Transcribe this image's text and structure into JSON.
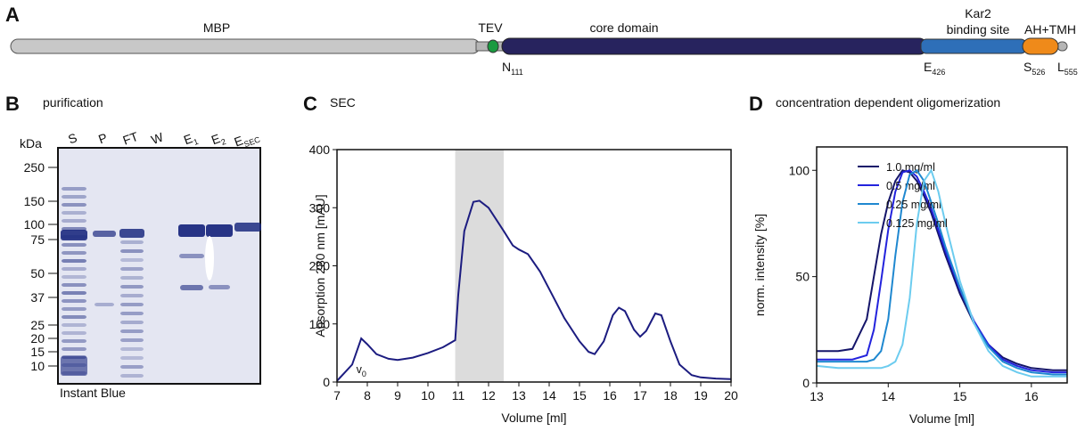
{
  "panel_a": {
    "label": "A",
    "mbp": "MBP",
    "tev": "TEV",
    "core": "core domain",
    "kar2": "Kar2",
    "binding": "binding site",
    "ah": "AH+TMH",
    "residues": [
      {
        "letter": "N",
        "sub": "111"
      },
      {
        "letter": "E",
        "sub": "426"
      },
      {
        "letter": "S",
        "sub": "526"
      },
      {
        "letter": "L",
        "sub": "555"
      }
    ]
  },
  "panel_b": {
    "label": "B",
    "title": "purification",
    "unit": "kDa",
    "lanes": [
      {
        "letter": "S",
        "sub": ""
      },
      {
        "letter": "P",
        "sub": ""
      },
      {
        "letter": "FT",
        "sub": ""
      },
      {
        "letter": "W",
        "sub": ""
      },
      {
        "letter": "E",
        "sub": "1"
      },
      {
        "letter": "E",
        "sub": "2"
      },
      {
        "letter": "E",
        "sub": "SEC"
      }
    ],
    "markers": [
      250,
      150,
      100,
      75,
      50,
      37,
      25,
      20,
      15,
      10
    ],
    "stain": "Instant Blue"
  },
  "chart_data": [
    {
      "type": "line",
      "panel_label": "C",
      "title": "SEC",
      "x_label": "Volume [ml]",
      "y_label": "Absorption 280 nm [mAU]",
      "xlim": [
        7,
        20
      ],
      "ylim": [
        0,
        400
      ],
      "xticks": [
        7,
        8,
        9,
        10,
        11,
        12,
        13,
        14,
        15,
        16,
        17,
        18,
        19,
        20
      ],
      "yticks": [
        0,
        100,
        200,
        300,
        400
      ],
      "highlight": [
        10.9,
        12.5
      ],
      "highlight_color": "#dcdcdc",
      "annotation": {
        "letter": "v",
        "sub": "0",
        "x": 7.8
      },
      "x": [
        7.0,
        7.5,
        7.8,
        8.0,
        8.3,
        8.7,
        9.0,
        9.5,
        10.0,
        10.5,
        10.9,
        11.0,
        11.2,
        11.5,
        11.7,
        12.0,
        12.5,
        12.8,
        13.0,
        13.3,
        13.7,
        14.0,
        14.5,
        15.0,
        15.3,
        15.5,
        15.8,
        16.1,
        16.3,
        16.5,
        16.8,
        17.0,
        17.2,
        17.5,
        17.7,
        18.0,
        18.3,
        18.7,
        19.0,
        19.5,
        20.0
      ],
      "series": [
        {
          "name": null,
          "color": "#1c1c80",
          "values": [
            2,
            30,
            75,
            65,
            48,
            40,
            38,
            42,
            50,
            60,
            72,
            150,
            260,
            310,
            312,
            300,
            260,
            235,
            228,
            220,
            190,
            160,
            110,
            70,
            52,
            48,
            70,
            115,
            128,
            122,
            90,
            78,
            88,
            118,
            115,
            70,
            30,
            12,
            8,
            6,
            5
          ]
        }
      ]
    },
    {
      "type": "line",
      "panel_label": "D",
      "title": "concentration dependent oligomerization",
      "x_label": "Volume [ml]",
      "y_label": "norm. intensity [%]",
      "xlim": [
        13,
        16.5
      ],
      "ylim": [
        0,
        111
      ],
      "xticks": [
        13,
        14,
        15,
        16
      ],
      "yticks": [
        0,
        50,
        100
      ],
      "x": [
        13,
        13.3,
        13.5,
        13.7,
        13.8,
        13.9,
        14.0,
        14.1,
        14.2,
        14.3,
        14.4,
        14.5,
        14.6,
        14.7,
        14.8,
        15.0,
        15.2,
        15.4,
        15.6,
        15.8,
        16.0,
        16.3,
        16.5
      ],
      "series": [
        {
          "name": "1.0 mg/ml",
          "color": "#15156a",
          "values": [
            15,
            15,
            16,
            30,
            50,
            70,
            85,
            95,
            100,
            99,
            95,
            88,
            80,
            70,
            60,
            42,
            28,
            18,
            12,
            9,
            7,
            6,
            6
          ]
        },
        {
          "name": "0.5 mg/ml",
          "color": "#2323dd",
          "values": [
            11,
            11,
            11,
            13,
            25,
            48,
            72,
            90,
            99,
            100,
            97,
            90,
            82,
            72,
            62,
            44,
            29,
            18,
            11,
            8,
            6,
            5,
            5
          ]
        },
        {
          "name": "0.25 mg/ml",
          "color": "#1f88d0",
          "values": [
            10,
            10,
            10,
            10,
            11,
            15,
            30,
            60,
            85,
            98,
            100,
            95,
            85,
            75,
            64,
            45,
            28,
            17,
            10,
            7,
            5,
            4,
            4
          ]
        },
        {
          "name": "0.125 mg/ml",
          "color": "#6cccef",
          "values": [
            8,
            7,
            7,
            7,
            7,
            7,
            8,
            10,
            18,
            40,
            75,
            95,
            100,
            90,
            75,
            48,
            28,
            15,
            8,
            5,
            3,
            3,
            3
          ]
        }
      ]
    }
  ]
}
